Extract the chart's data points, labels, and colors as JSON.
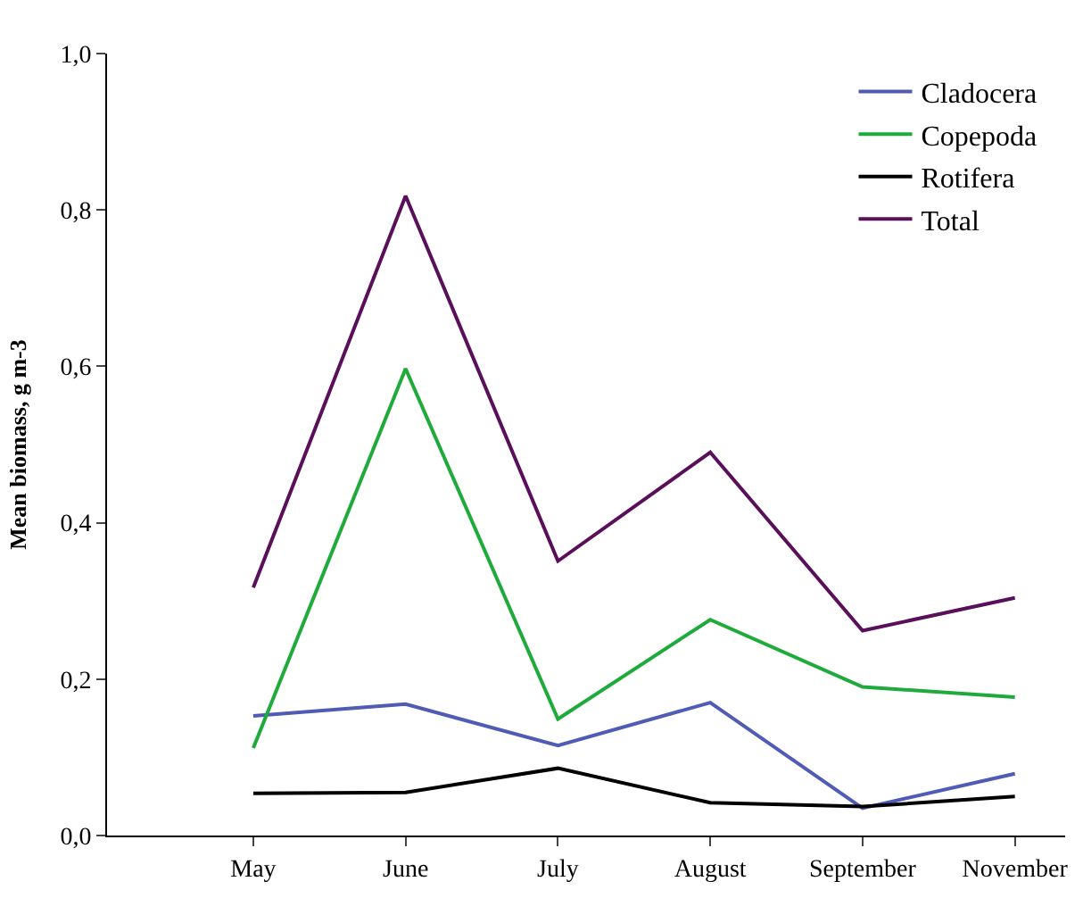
{
  "chart_data": {
    "type": "line",
    "ylabel": "Mean biomass, g m-3",
    "categories": [
      "May",
      "June",
      "July",
      "August",
      "September",
      "November"
    ],
    "series": [
      {
        "name": "Cladocera",
        "color": "#4f5bb5",
        "values": [
          0.153,
          0.168,
          0.115,
          0.17,
          0.035,
          0.079
        ]
      },
      {
        "name": "Copepoda",
        "color": "#1faa3c",
        "values": [
          0.112,
          0.597,
          0.149,
          0.276,
          0.19,
          0.177
        ]
      },
      {
        "name": "Rotifera",
        "color": "#000000",
        "values": [
          0.054,
          0.055,
          0.086,
          0.042,
          0.037,
          0.05
        ]
      },
      {
        "name": "Total",
        "color": "#5a0f5a",
        "values": [
          0.317,
          0.818,
          0.351,
          0.49,
          0.262,
          0.304
        ]
      }
    ],
    "ylim": [
      0,
      1
    ],
    "yticks": [
      {
        "value": 0,
        "label": "0,0"
      },
      {
        "value": 0.2,
        "label": "0,2"
      },
      {
        "value": 0.4,
        "label": "0,4"
      },
      {
        "value": 0.6,
        "label": "0,6"
      },
      {
        "value": 0.8,
        "label": "0,8"
      },
      {
        "value": 1,
        "label": "1,0"
      }
    ],
    "grid": false,
    "legend": "top right",
    "marker": "none",
    "line_style": "solid"
  }
}
